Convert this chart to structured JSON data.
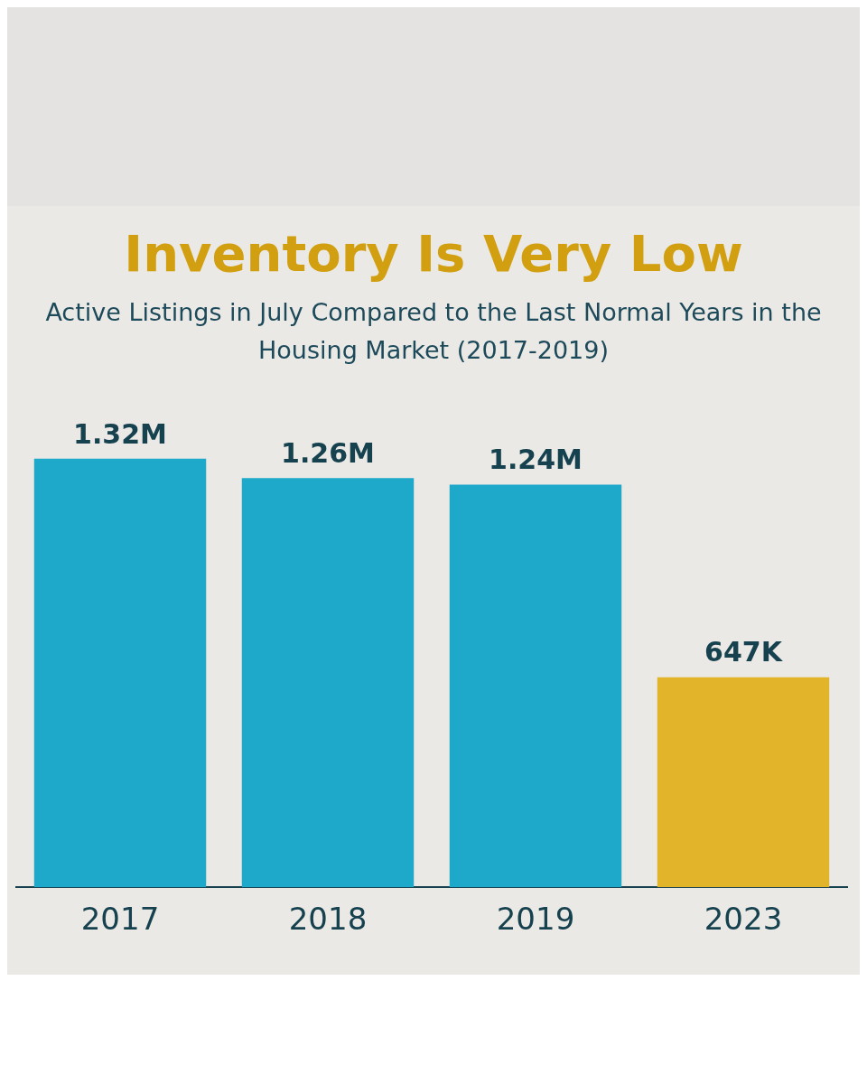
{
  "chart_data": {
    "type": "bar",
    "title": "Inventory Is Very Low",
    "subtitle": "Active Listings in July Compared to the Last Normal Years in the Housing Market (2017-2019)",
    "categories": [
      "2017",
      "2018",
      "2019",
      "2023"
    ],
    "values": [
      1320000,
      1260000,
      1240000,
      647000
    ],
    "colors": [
      "#1ea8c9",
      "#1ea8c9",
      "#1ea8c9",
      "#e2b42a"
    ],
    "value_labels": [
      "1.32M",
      "1.26M",
      "1.24M",
      "647K"
    ],
    "grid": false,
    "legend": false
  }
}
